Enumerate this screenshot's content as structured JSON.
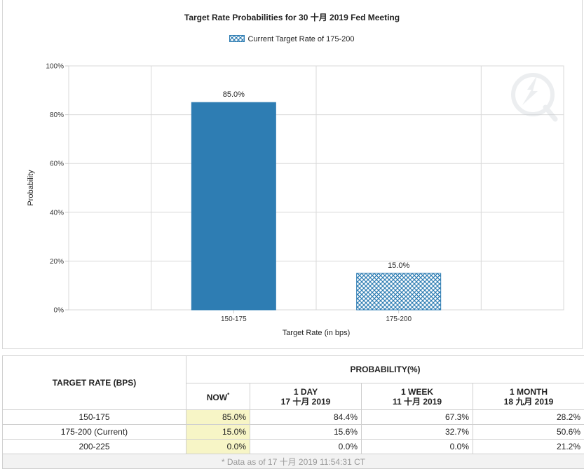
{
  "chart_data": {
    "type": "bar",
    "title": "Target Rate Probabilities for 30 十月 2019 Fed Meeting",
    "legend": "Current Target Rate of 175-200",
    "legend_placement": "top-center",
    "xlabel": "Target Rate (in bps)",
    "ylabel": "Probability",
    "categories": [
      "150-175",
      "175-200"
    ],
    "values": [
      85.0,
      15.0
    ],
    "data_labels": [
      "85.0%",
      "15.0%"
    ],
    "patterned_category": "175-200",
    "ylim": [
      0,
      100
    ],
    "y_ticks": [
      "0%",
      "20%",
      "40%",
      "60%",
      "80%",
      "100%"
    ],
    "grid": true,
    "colors": {
      "bar": "#2e7db3",
      "grid": "#d9d9d9",
      "axis": "#cccccc"
    }
  },
  "table": {
    "rate_header": "TARGET RATE (BPS)",
    "prob_header": "PROBABILITY(%)",
    "columns": [
      {
        "line1": "NOW",
        "line2": ""
      },
      {
        "line1": "1 DAY",
        "line2": "17 十月 2019"
      },
      {
        "line1": "1 WEEK",
        "line2": "11 十月 2019"
      },
      {
        "line1": "1 MONTH",
        "line2": "18 九月 2019"
      }
    ],
    "now_marker": "*",
    "rows": [
      {
        "rate": "150-175",
        "values": [
          "85.0%",
          "84.4%",
          "67.3%",
          "28.2%"
        ]
      },
      {
        "rate": "175-200 (Current)",
        "values": [
          "15.0%",
          "15.6%",
          "32.7%",
          "50.6%"
        ]
      },
      {
        "rate": "200-225",
        "values": [
          "0.0%",
          "0.0%",
          "0.0%",
          "21.2%"
        ]
      }
    ],
    "footnote": "* Data as of 17 十月 2019 11:54:31 CT",
    "highlight_color": "#f7f5c6"
  }
}
